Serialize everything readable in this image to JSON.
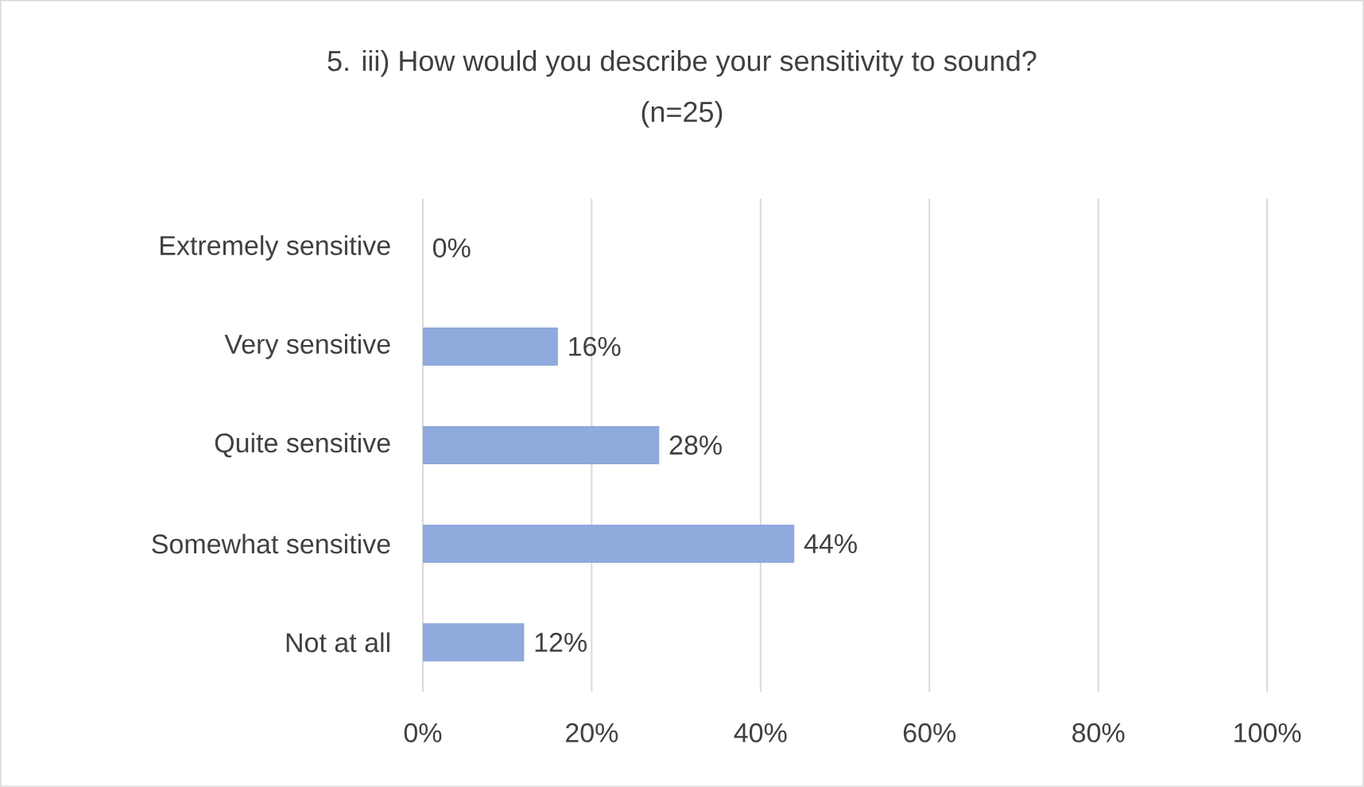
{
  "chart_data": {
    "type": "bar",
    "orientation": "horizontal",
    "title": "5. iii) How would you describe your sensitivity to sound?",
    "subtitle": "(n=25)",
    "categories": [
      "Extremely sensitive",
      "Very sensitive",
      "Quite sensitive",
      "Somewhat sensitive",
      "Not at all"
    ],
    "values": [
      0,
      16,
      28,
      44,
      12
    ],
    "value_labels": [
      "0%",
      "16%",
      "28%",
      "44%",
      "12%"
    ],
    "color": "#8faadc",
    "xlim": [
      0,
      100
    ],
    "xticks": [
      {
        "value": 0,
        "label": "0%"
      },
      {
        "value": 20,
        "label": "20%"
      },
      {
        "value": 40,
        "label": "40%"
      },
      {
        "value": 60,
        "label": "60%"
      },
      {
        "value": 80,
        "label": "80%"
      },
      {
        "value": 100,
        "label": "100%"
      }
    ],
    "grid": "x"
  }
}
